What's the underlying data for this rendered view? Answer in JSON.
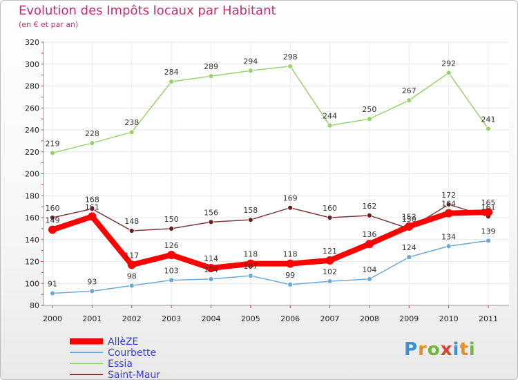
{
  "chart_data": {
    "type": "line",
    "title": "Evolution des Impôts locaux par Habitant",
    "subtitle": "(en € et par an)",
    "categories": [
      "2000",
      "2001",
      "2002",
      "2003",
      "2004",
      "2005",
      "2006",
      "2007",
      "2008",
      "2009",
      "2010",
      "2011"
    ],
    "ylim": [
      80,
      320
    ],
    "yticks": [
      80,
      100,
      120,
      140,
      160,
      180,
      200,
      220,
      240,
      260,
      280,
      300,
      320
    ],
    "grid": true,
    "legend_position": "bottom-left",
    "series": [
      {
        "name": "AllèZE",
        "color": "#ff0000",
        "values": [
          149,
          161,
          117,
          126,
          114,
          118,
          118,
          121,
          136,
          152,
          164,
          165
        ],
        "labels": [
          "149",
          "161",
          "117",
          "126",
          "114",
          "118",
          "118",
          "121",
          "136",
          "152",
          "164",
          "165"
        ]
      },
      {
        "name": "Courbette",
        "color": "#6fa8d6",
        "values": [
          91,
          93,
          98,
          103,
          104,
          107,
          99,
          102,
          104,
          124,
          134,
          139
        ],
        "labels": [
          "91",
          "93",
          "98",
          "103",
          "104",
          "107",
          "99",
          "102",
          "104",
          "124",
          "134",
          "139"
        ]
      },
      {
        "name": "Essia",
        "color": "#98d36b",
        "values": [
          219,
          228,
          238,
          284,
          289,
          294,
          298,
          244,
          250,
          267,
          292,
          241
        ],
        "labels": [
          "219",
          "228",
          "238",
          "284",
          "289",
          "294",
          "298",
          "244",
          "250",
          "267",
          "292",
          "241"
        ]
      },
      {
        "name": "Saint-Maur",
        "color": "#7a3a3a",
        "values": [
          160,
          168,
          148,
          150,
          156,
          158,
          169,
          160,
          162,
          150,
          172,
          161
        ],
        "labels": [
          "160",
          "168",
          "148",
          "150",
          "156",
          "158",
          "169",
          "160",
          "162",
          "150",
          "172",
          "161"
        ]
      }
    ]
  },
  "logo": {
    "letters": [
      "P",
      "r",
      "o",
      "x",
      "i",
      "t",
      "i"
    ],
    "colors": [
      "#3a8fd1",
      "#e0902a",
      "#6fb83a",
      "#e0402a",
      "#3a8fd1",
      "#e0902a",
      "#6fb83a"
    ]
  }
}
